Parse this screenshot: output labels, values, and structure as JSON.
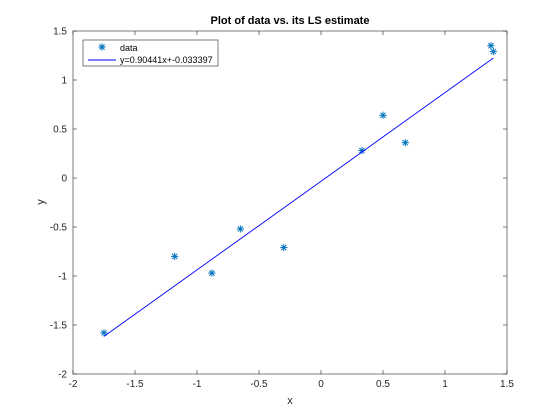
{
  "chart_data": {
    "type": "scatter",
    "title": "Plot of data vs. its LS estimate",
    "xlabel": "x",
    "ylabel": "y",
    "xlim": [
      -2,
      1.5
    ],
    "ylim": [
      -2,
      1.5
    ],
    "xticks": [
      "-2",
      "-1.5",
      "-1",
      "-0.5",
      "0",
      "0.5",
      "1",
      "1.5"
    ],
    "xtick_values": [
      -2,
      -1.5,
      -1,
      -0.5,
      0,
      0.5,
      1,
      1.5
    ],
    "yticks": [
      "-2",
      "-1.5",
      "-1",
      "-0.5",
      "0",
      "0.5",
      "1",
      "1.5"
    ],
    "ytick_values": [
      -2,
      -1.5,
      -1,
      -0.5,
      0,
      0.5,
      1,
      1.5
    ],
    "grid": false,
    "legend_position": "top-left",
    "series": [
      {
        "name": "data",
        "kind": "markers",
        "marker": "asterisk",
        "color": "#0072BD",
        "x": [
          -1.75,
          -1.18,
          -0.88,
          -0.65,
          -0.3,
          0.33,
          0.5,
          0.68,
          1.37,
          1.39
        ],
        "y": [
          -1.58,
          -0.8,
          -0.97,
          -0.52,
          -0.71,
          0.28,
          0.64,
          0.36,
          1.35,
          1.29
        ]
      },
      {
        "name": "y=0.90441x+-0.033397",
        "kind": "line",
        "color": "#0000FF",
        "x": [
          -1.75,
          1.39
        ],
        "y": [
          -1.616,
          1.224
        ]
      }
    ]
  }
}
